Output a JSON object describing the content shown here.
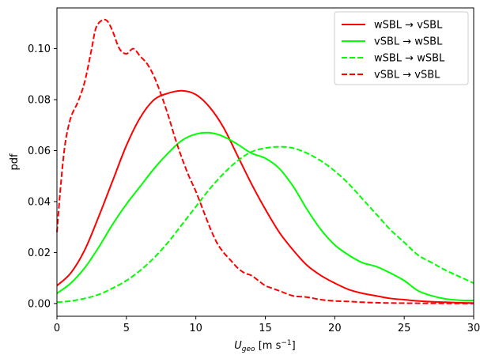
{
  "chart_data": {
    "type": "line",
    "title": "",
    "xlabel_main": "U",
    "xlabel_sub": "geo",
    "xlabel_units_prefix": " [m s",
    "xlabel_units_exp": "−1",
    "xlabel_units_suffix": "]",
    "ylabel": "pdf",
    "xlim": [
      0,
      30
    ],
    "ylim": [
      -0.005,
      0.116
    ],
    "xticks": [
      0,
      5,
      10,
      15,
      20,
      25,
      30
    ],
    "xtick_labels": [
      "0",
      "5",
      "10",
      "15",
      "20",
      "25",
      "30"
    ],
    "yticks": [
      0.0,
      0.02,
      0.04,
      0.06,
      0.08,
      0.1
    ],
    "ytick_labels": [
      "0.00",
      "0.02",
      "0.04",
      "0.06",
      "0.08",
      "0.10"
    ],
    "grid": false,
    "legend_position": "top-right",
    "series": [
      {
        "name": "wSBL → vSBL",
        "color": "#ff0000",
        "dash": "solid",
        "points": [
          [
            0,
            0.007
          ],
          [
            1,
            0.012
          ],
          [
            2,
            0.021
          ],
          [
            3,
            0.034
          ],
          [
            4,
            0.048
          ],
          [
            5,
            0.062
          ],
          [
            6,
            0.073
          ],
          [
            7,
            0.08
          ],
          [
            8,
            0.0825
          ],
          [
            9,
            0.0835
          ],
          [
            10,
            0.082
          ],
          [
            11,
            0.077
          ],
          [
            12,
            0.069
          ],
          [
            13,
            0.058
          ],
          [
            14,
            0.047
          ],
          [
            15,
            0.037
          ],
          [
            16,
            0.028
          ],
          [
            17,
            0.021
          ],
          [
            18,
            0.015
          ],
          [
            19,
            0.011
          ],
          [
            20,
            0.008
          ],
          [
            21,
            0.0055
          ],
          [
            22,
            0.004
          ],
          [
            23,
            0.003
          ],
          [
            24,
            0.002
          ],
          [
            25,
            0.0015
          ],
          [
            26,
            0.001
          ],
          [
            27,
            0.0007
          ],
          [
            28,
            0.0005
          ],
          [
            29,
            0.0003
          ],
          [
            30,
            0.0002
          ]
        ]
      },
      {
        "name": "vSBL → wSBL",
        "color": "#00ff00",
        "dash": "solid",
        "points": [
          [
            0,
            0.004
          ],
          [
            1,
            0.008
          ],
          [
            2,
            0.014
          ],
          [
            3,
            0.022
          ],
          [
            4,
            0.031
          ],
          [
            5,
            0.039
          ],
          [
            6,
            0.046
          ],
          [
            7,
            0.053
          ],
          [
            8,
            0.059
          ],
          [
            9,
            0.064
          ],
          [
            10,
            0.0665
          ],
          [
            11,
            0.067
          ],
          [
            12,
            0.0655
          ],
          [
            13,
            0.0625
          ],
          [
            14,
            0.059
          ],
          [
            15,
            0.057
          ],
          [
            16,
            0.053
          ],
          [
            17,
            0.046
          ],
          [
            18,
            0.037
          ],
          [
            19,
            0.029
          ],
          [
            20,
            0.023
          ],
          [
            21,
            0.019
          ],
          [
            22,
            0.016
          ],
          [
            23,
            0.0145
          ],
          [
            24,
            0.012
          ],
          [
            25,
            0.009
          ],
          [
            26,
            0.005
          ],
          [
            27,
            0.003
          ],
          [
            28,
            0.0018
          ],
          [
            29,
            0.0013
          ],
          [
            30,
            0.0012
          ]
        ]
      },
      {
        "name": "wSBL → wSBL",
        "color": "#00ff00",
        "dash": "dashed",
        "points": [
          [
            0,
            0.0005
          ],
          [
            1,
            0.001
          ],
          [
            2,
            0.002
          ],
          [
            3,
            0.0035
          ],
          [
            4,
            0.006
          ],
          [
            5,
            0.009
          ],
          [
            6,
            0.013
          ],
          [
            7,
            0.018
          ],
          [
            8,
            0.024
          ],
          [
            9,
            0.031
          ],
          [
            10,
            0.038
          ],
          [
            11,
            0.045
          ],
          [
            12,
            0.051
          ],
          [
            13,
            0.056
          ],
          [
            14,
            0.0595
          ],
          [
            15,
            0.061
          ],
          [
            16,
            0.0615
          ],
          [
            17,
            0.061
          ],
          [
            18,
            0.059
          ],
          [
            19,
            0.056
          ],
          [
            20,
            0.052
          ],
          [
            21,
            0.047
          ],
          [
            22,
            0.041
          ],
          [
            23,
            0.035
          ],
          [
            24,
            0.029
          ],
          [
            25,
            0.024
          ],
          [
            26,
            0.019
          ],
          [
            27,
            0.016
          ],
          [
            28,
            0.013
          ],
          [
            29,
            0.0105
          ],
          [
            30,
            0.008
          ]
        ]
      },
      {
        "name": "vSBL → vSBL",
        "color": "#ff0000",
        "dash": "dashed",
        "points": [
          [
            0,
            0.028
          ],
          [
            0.3,
            0.048
          ],
          [
            0.6,
            0.063
          ],
          [
            1,
            0.073
          ],
          [
            1.5,
            0.079
          ],
          [
            2,
            0.087
          ],
          [
            2.5,
            0.1
          ],
          [
            2.8,
            0.108
          ],
          [
            3.2,
            0.111
          ],
          [
            3.6,
            0.111
          ],
          [
            4,
            0.107
          ],
          [
            4.5,
            0.1
          ],
          [
            5,
            0.098
          ],
          [
            5.5,
            0.1
          ],
          [
            6,
            0.097
          ],
          [
            6.5,
            0.094
          ],
          [
            7,
            0.089
          ],
          [
            7.5,
            0.082
          ],
          [
            8,
            0.074
          ],
          [
            8.5,
            0.065
          ],
          [
            9,
            0.057
          ],
          [
            9.5,
            0.05
          ],
          [
            10,
            0.044
          ],
          [
            10.5,
            0.037
          ],
          [
            11,
            0.03
          ],
          [
            11.5,
            0.024
          ],
          [
            12,
            0.02
          ],
          [
            12.5,
            0.017
          ],
          [
            13,
            0.014
          ],
          [
            13.5,
            0.012
          ],
          [
            14,
            0.011
          ],
          [
            14.5,
            0.009
          ],
          [
            15,
            0.007
          ],
          [
            15.5,
            0.006
          ],
          [
            16,
            0.005
          ],
          [
            17,
            0.003
          ],
          [
            18,
            0.0025
          ],
          [
            19,
            0.0015
          ],
          [
            20,
            0.001
          ],
          [
            21,
            0.0008
          ],
          [
            22,
            0.0005
          ],
          [
            23,
            0.0003
          ],
          [
            24,
            0.0002
          ],
          [
            26,
            0.0001
          ],
          [
            28,
            5e-05
          ],
          [
            30,
            0.0
          ]
        ]
      }
    ]
  }
}
